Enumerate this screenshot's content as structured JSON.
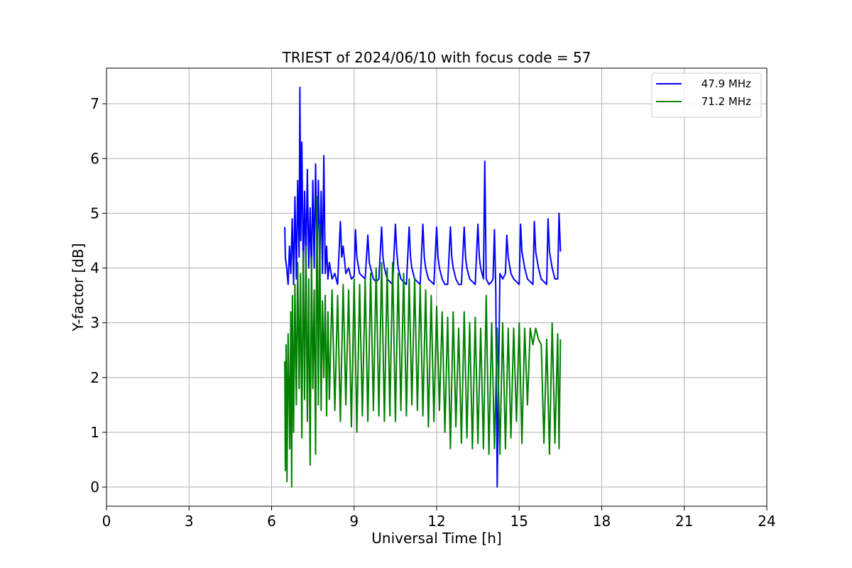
{
  "chart_data": {
    "type": "line",
    "title": "TRIEST of 2024/06/10 with focus code = 57",
    "xlabel": "Universal Time [h]",
    "ylabel": "Y-factor [dB]",
    "xlim": [
      0,
      24
    ],
    "ylim": [
      -0.35,
      7.65
    ],
    "xticks": [
      0,
      3,
      6,
      9,
      12,
      15,
      18,
      21,
      24
    ],
    "yticks": [
      0,
      1,
      2,
      3,
      4,
      5,
      6,
      7
    ],
    "grid": true,
    "legend_position": "top-right",
    "series": [
      {
        "name": "47.9 MHz",
        "color": "#0000ff",
        "x": [
          6.48,
          6.5,
          6.55,
          6.6,
          6.65,
          6.7,
          6.75,
          6.8,
          6.85,
          6.9,
          6.95,
          7.0,
          7.03,
          7.06,
          7.1,
          7.15,
          7.2,
          7.25,
          7.3,
          7.35,
          7.4,
          7.45,
          7.5,
          7.55,
          7.6,
          7.65,
          7.7,
          7.75,
          7.8,
          7.85,
          7.9,
          7.95,
          8.0,
          8.05,
          8.1,
          8.2,
          8.3,
          8.4,
          8.5,
          8.55,
          8.6,
          8.7,
          8.8,
          8.9,
          9.0,
          9.05,
          9.1,
          9.2,
          9.3,
          9.4,
          9.5,
          9.55,
          9.6,
          9.7,
          9.8,
          9.9,
          10.0,
          10.05,
          10.1,
          10.2,
          10.3,
          10.4,
          10.5,
          10.55,
          10.6,
          10.7,
          10.8,
          10.9,
          11.0,
          11.05,
          11.1,
          11.2,
          11.3,
          11.4,
          11.5,
          11.55,
          11.6,
          11.7,
          11.8,
          11.9,
          12.0,
          12.05,
          12.1,
          12.2,
          12.3,
          12.4,
          12.5,
          12.55,
          12.6,
          12.7,
          12.8,
          12.9,
          13.0,
          13.05,
          13.1,
          13.2,
          13.3,
          13.4,
          13.5,
          13.55,
          13.6,
          13.7,
          13.75,
          13.8,
          13.9,
          14.0,
          14.05,
          14.1,
          14.15,
          14.2,
          14.3,
          14.4,
          14.5,
          14.55,
          14.6,
          14.7,
          14.8,
          14.9,
          15.0,
          15.05,
          15.1,
          15.2,
          15.3,
          15.4,
          15.5,
          15.55,
          15.6,
          15.7,
          15.8,
          15.9,
          16.0,
          16.05,
          16.1,
          16.2,
          16.3,
          16.4,
          16.45,
          16.5
        ],
        "y": [
          4.75,
          4.2,
          4.0,
          3.7,
          4.4,
          3.9,
          4.9,
          3.7,
          5.3,
          3.8,
          5.6,
          4.2,
          7.3,
          4.5,
          6.3,
          3.9,
          5.4,
          4.1,
          5.8,
          4.0,
          5.1,
          3.9,
          5.6,
          4.0,
          5.9,
          4.2,
          5.6,
          4.0,
          5.4,
          3.9,
          6.05,
          3.9,
          4.4,
          3.8,
          4.1,
          3.8,
          3.9,
          3.7,
          4.85,
          4.2,
          4.4,
          3.9,
          4.0,
          3.8,
          3.85,
          4.7,
          4.2,
          3.9,
          3.85,
          3.8,
          4.6,
          4.1,
          4.0,
          3.8,
          3.75,
          3.8,
          4.75,
          4.2,
          4.0,
          3.8,
          3.75,
          3.7,
          4.8,
          4.3,
          4.0,
          3.8,
          3.75,
          3.7,
          4.75,
          4.2,
          4.0,
          3.8,
          3.75,
          3.7,
          4.8,
          4.2,
          4.0,
          3.8,
          3.75,
          3.7,
          4.75,
          4.2,
          4.0,
          3.8,
          3.7,
          3.7,
          4.75,
          4.2,
          4.0,
          3.8,
          3.7,
          3.7,
          4.75,
          4.2,
          4.0,
          3.8,
          3.75,
          3.7,
          4.8,
          4.2,
          4.0,
          3.8,
          5.95,
          3.8,
          3.7,
          3.75,
          3.8,
          4.7,
          3.6,
          0.0,
          3.9,
          3.8,
          3.9,
          4.6,
          4.2,
          3.9,
          3.8,
          3.75,
          3.7,
          4.8,
          4.3,
          4.0,
          3.8,
          3.75,
          3.7,
          4.85,
          4.3,
          4.0,
          3.8,
          3.75,
          3.7,
          4.9,
          4.3,
          4.0,
          3.8,
          3.8,
          5.0,
          4.3
        ]
      },
      {
        "name": "71.2 MHz",
        "color": "#008000",
        "x": [
          6.48,
          6.5,
          6.53,
          6.56,
          6.6,
          6.63,
          6.66,
          6.7,
          6.73,
          6.76,
          6.8,
          6.85,
          6.9,
          6.95,
          7.0,
          7.05,
          7.1,
          7.15,
          7.2,
          7.25,
          7.3,
          7.35,
          7.4,
          7.45,
          7.5,
          7.55,
          7.6,
          7.65,
          7.7,
          7.75,
          7.8,
          7.85,
          7.9,
          7.95,
          8.0,
          8.05,
          8.1,
          8.2,
          8.3,
          8.4,
          8.5,
          8.6,
          8.7,
          8.8,
          8.9,
          9.0,
          9.1,
          9.2,
          9.3,
          9.4,
          9.5,
          9.6,
          9.7,
          9.8,
          9.9,
          10.0,
          10.1,
          10.2,
          10.3,
          10.4,
          10.5,
          10.6,
          10.7,
          10.8,
          10.9,
          11.0,
          11.1,
          11.2,
          11.3,
          11.4,
          11.5,
          11.6,
          11.7,
          11.8,
          11.9,
          12.0,
          12.1,
          12.2,
          12.3,
          12.4,
          12.5,
          12.6,
          12.7,
          12.8,
          12.9,
          13.0,
          13.1,
          13.2,
          13.3,
          13.4,
          13.5,
          13.6,
          13.7,
          13.8,
          13.9,
          14.0,
          14.1,
          14.2,
          14.3,
          14.4,
          14.5,
          14.6,
          14.7,
          14.8,
          14.9,
          15.0,
          15.1,
          15.2,
          15.3,
          15.4,
          15.5,
          15.6,
          15.7,
          15.8,
          15.9,
          16.0,
          16.1,
          16.2,
          16.3,
          16.4,
          16.45,
          16.5
        ],
        "y": [
          2.3,
          0.3,
          2.6,
          0.1,
          2.8,
          1.9,
          0.7,
          3.2,
          0.0,
          3.5,
          1.0,
          3.7,
          1.5,
          4.1,
          1.8,
          3.9,
          0.9,
          4.3,
          1.6,
          4.4,
          1.2,
          3.8,
          0.4,
          4.2,
          1.8,
          3.6,
          0.6,
          5.3,
          1.5,
          4.8,
          1.4,
          3.4,
          2.0,
          3.5,
          1.3,
          3.2,
          1.6,
          3.6,
          1.4,
          3.5,
          1.2,
          3.7,
          1.5,
          3.6,
          1.1,
          3.8,
          1.0,
          3.7,
          1.3,
          3.8,
          1.2,
          3.9,
          1.4,
          4.0,
          1.3,
          4.1,
          1.2,
          4.0,
          1.3,
          4.1,
          1.2,
          3.9,
          1.4,
          3.9,
          1.3,
          3.8,
          1.5,
          3.8,
          1.4,
          3.7,
          1.3,
          3.6,
          1.1,
          3.5,
          1.2,
          3.3,
          1.4,
          3.2,
          1.0,
          3.1,
          0.7,
          3.2,
          1.1,
          2.9,
          0.8,
          3.2,
          0.9,
          3.0,
          0.7,
          3.1,
          0.8,
          2.9,
          0.7,
          3.5,
          0.6,
          3.0,
          0.7,
          2.9,
          0.6,
          3.0,
          0.7,
          2.9,
          0.9,
          2.9,
          1.2,
          3.0,
          0.8,
          2.9,
          1.5,
          2.9,
          2.6,
          2.9,
          2.7,
          2.6,
          0.8,
          2.7,
          0.6,
          3.0,
          0.8,
          2.8,
          0.7,
          2.7
        ]
      }
    ]
  }
}
